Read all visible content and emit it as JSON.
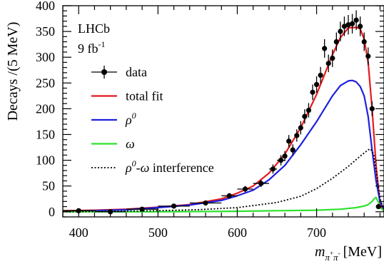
{
  "chart_data": {
    "type": "line",
    "title": "",
    "xlabel": {
      "base": "m",
      "subscript": "π",
      "sub_sup_1": "+",
      "sub_tail": "π",
      "sub_sup_2": "-",
      "unit": "[MeV]"
    },
    "ylabel": "Decays /(5 MeV)",
    "xlim": [
      380,
      785
    ],
    "ylim": [
      -10,
      400
    ],
    "x_major_ticks": [
      400,
      500,
      600,
      700
    ],
    "y_major_ticks": [
      0,
      50,
      100,
      150,
      200,
      250,
      300,
      350,
      400
    ],
    "annotations": {
      "experiment": "LHCb",
      "luminosity": "9 fb",
      "luminosity_sup": "-1"
    },
    "legend_position": "left-middle",
    "legend": [
      {
        "key": "data",
        "label": "data",
        "style": "marker"
      },
      {
        "key": "total",
        "label": "total fit",
        "style": "line",
        "color": "#e8191e"
      },
      {
        "key": "rho",
        "label": "ρ",
        "label_sup": "0",
        "style": "line",
        "color": "#1f1fe0"
      },
      {
        "key": "omega",
        "label": "ω",
        "style": "line",
        "color": "#2fe22f"
      },
      {
        "key": "interf",
        "label": "ρ",
        "label_sup": "0",
        "label_tail": "-ω interference",
        "style": "dotted",
        "color": "#000000"
      }
    ],
    "data_points": [
      {
        "x": 400,
        "y": 2,
        "xerr": 20,
        "yerr": 2
      },
      {
        "x": 440,
        "y": 0,
        "xerr": 20,
        "yerr": 2
      },
      {
        "x": 480,
        "y": 5,
        "xerr": 20,
        "yerr": 2
      },
      {
        "x": 520,
        "y": 11,
        "xerr": 20,
        "yerr": 3
      },
      {
        "x": 560,
        "y": 17,
        "xerr": 20,
        "yerr": 4
      },
      {
        "x": 590,
        "y": 31,
        "xerr": 10,
        "yerr": 5
      },
      {
        "x": 610,
        "y": 44,
        "xerr": 10,
        "yerr": 6
      },
      {
        "x": 630,
        "y": 55,
        "xerr": 10,
        "yerr": 7
      },
      {
        "x": 645,
        "y": 83,
        "xerr": 5,
        "yerr": 9
      },
      {
        "x": 655,
        "y": 100,
        "xerr": 5,
        "yerr": 10
      },
      {
        "x": 660,
        "y": 108,
        "xerr": 2.5,
        "yerr": 10
      },
      {
        "x": 665,
        "y": 137,
        "xerr": 2.5,
        "yerr": 12
      },
      {
        "x": 670,
        "y": 120,
        "xerr": 2.5,
        "yerr": 11
      },
      {
        "x": 675,
        "y": 148,
        "xerr": 2.5,
        "yerr": 12
      },
      {
        "x": 680,
        "y": 163,
        "xerr": 2.5,
        "yerr": 13
      },
      {
        "x": 685,
        "y": 185,
        "xerr": 2.5,
        "yerr": 14
      },
      {
        "x": 690,
        "y": 197,
        "xerr": 2.5,
        "yerr": 14
      },
      {
        "x": 695,
        "y": 232,
        "xerr": 2.5,
        "yerr": 15
      },
      {
        "x": 700,
        "y": 247,
        "xerr": 2.5,
        "yerr": 16
      },
      {
        "x": 705,
        "y": 265,
        "xerr": 2.5,
        "yerr": 16
      },
      {
        "x": 710,
        "y": 317,
        "xerr": 2.5,
        "yerr": 18
      },
      {
        "x": 715,
        "y": 288,
        "xerr": 2.5,
        "yerr": 17
      },
      {
        "x": 720,
        "y": 298,
        "xerr": 2.5,
        "yerr": 17
      },
      {
        "x": 725,
        "y": 330,
        "xerr": 2.5,
        "yerr": 18
      },
      {
        "x": 730,
        "y": 350,
        "xerr": 2.5,
        "yerr": 19
      },
      {
        "x": 735,
        "y": 360,
        "xerr": 2.5,
        "yerr": 19
      },
      {
        "x": 740,
        "y": 363,
        "xerr": 2.5,
        "yerr": 19
      },
      {
        "x": 745,
        "y": 365,
        "xerr": 2.5,
        "yerr": 19
      },
      {
        "x": 750,
        "y": 372,
        "xerr": 2.5,
        "yerr": 19
      },
      {
        "x": 755,
        "y": 360,
        "xerr": 2.5,
        "yerr": 19
      },
      {
        "x": 760,
        "y": 330,
        "xerr": 2.5,
        "yerr": 18
      },
      {
        "x": 765,
        "y": 302,
        "xerr": 2.5,
        "yerr": 17
      },
      {
        "x": 770,
        "y": 200,
        "xerr": 2.5,
        "yerr": 14
      },
      {
        "x": 778,
        "y": 10,
        "xerr": 3,
        "yerr": 5
      }
    ],
    "series": [
      {
        "key": "total",
        "x": [
          380,
          420,
          460,
          500,
          540,
          580,
          600,
          620,
          640,
          660,
          680,
          700,
          720,
          730,
          740,
          750,
          755,
          760,
          765,
          770,
          775,
          780,
          785
        ],
        "y": [
          2,
          3,
          5,
          9,
          14,
          25,
          36,
          50,
          75,
          112,
          163,
          228,
          305,
          338,
          357,
          358,
          355,
          335,
          290,
          200,
          90,
          15,
          0
        ]
      },
      {
        "key": "rho",
        "x": [
          380,
          420,
          460,
          500,
          540,
          580,
          600,
          620,
          640,
          660,
          680,
          700,
          720,
          730,
          740,
          745,
          750,
          755,
          760,
          765,
          770,
          775,
          780,
          785
        ],
        "y": [
          1,
          2,
          4,
          8,
          13,
          22,
          31,
          42,
          62,
          90,
          130,
          175,
          225,
          245,
          254,
          255,
          252,
          243,
          225,
          185,
          120,
          60,
          20,
          5
        ]
      },
      {
        "key": "omega",
        "x": [
          380,
          500,
          600,
          650,
          700,
          730,
          750,
          760,
          765,
          770,
          773,
          775,
          778,
          780,
          785
        ],
        "y": [
          0,
          0,
          1,
          2,
          3,
          5,
          8,
          11,
          14,
          20,
          26,
          28,
          18,
          8,
          2
        ]
      },
      {
        "key": "interf",
        "x": [
          380,
          450,
          500,
          550,
          600,
          650,
          680,
          700,
          720,
          740,
          755,
          765,
          768,
          772,
          776,
          780,
          785
        ],
        "y": [
          0,
          1,
          2,
          4,
          8,
          18,
          30,
          45,
          65,
          88,
          108,
          120,
          122,
          112,
          70,
          25,
          5
        ]
      }
    ]
  }
}
